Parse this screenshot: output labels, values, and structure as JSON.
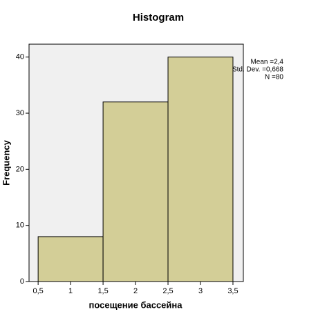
{
  "chart_data": {
    "type": "histogram",
    "title": "Histogram",
    "x_label": "посещение бассейна",
    "y_label": "Frequency",
    "bins": [
      0.5,
      1.5,
      2.5,
      3.5
    ],
    "values": [
      8,
      32,
      40
    ],
    "color": "#d3ce97",
    "edge_color": "#000000",
    "background": "#f0f0f0",
    "xlim": [
      0.36,
      3.66
    ],
    "ylim": [
      0,
      42.3
    ],
    "xticks": [
      {
        "value": 0.5,
        "label": "0,5"
      },
      1,
      {
        "value": 1.5,
        "label": "1,5"
      },
      2,
      {
        "value": 2.5,
        "label": "2,5"
      },
      3,
      {
        "value": 3.5,
        "label": "3,5"
      }
    ],
    "yticks": [
      0,
      10,
      20,
      30,
      40
    ],
    "annotations": [
      "Mean =2,4",
      "Std. Dev. =0,668",
      "N =80"
    ]
  }
}
